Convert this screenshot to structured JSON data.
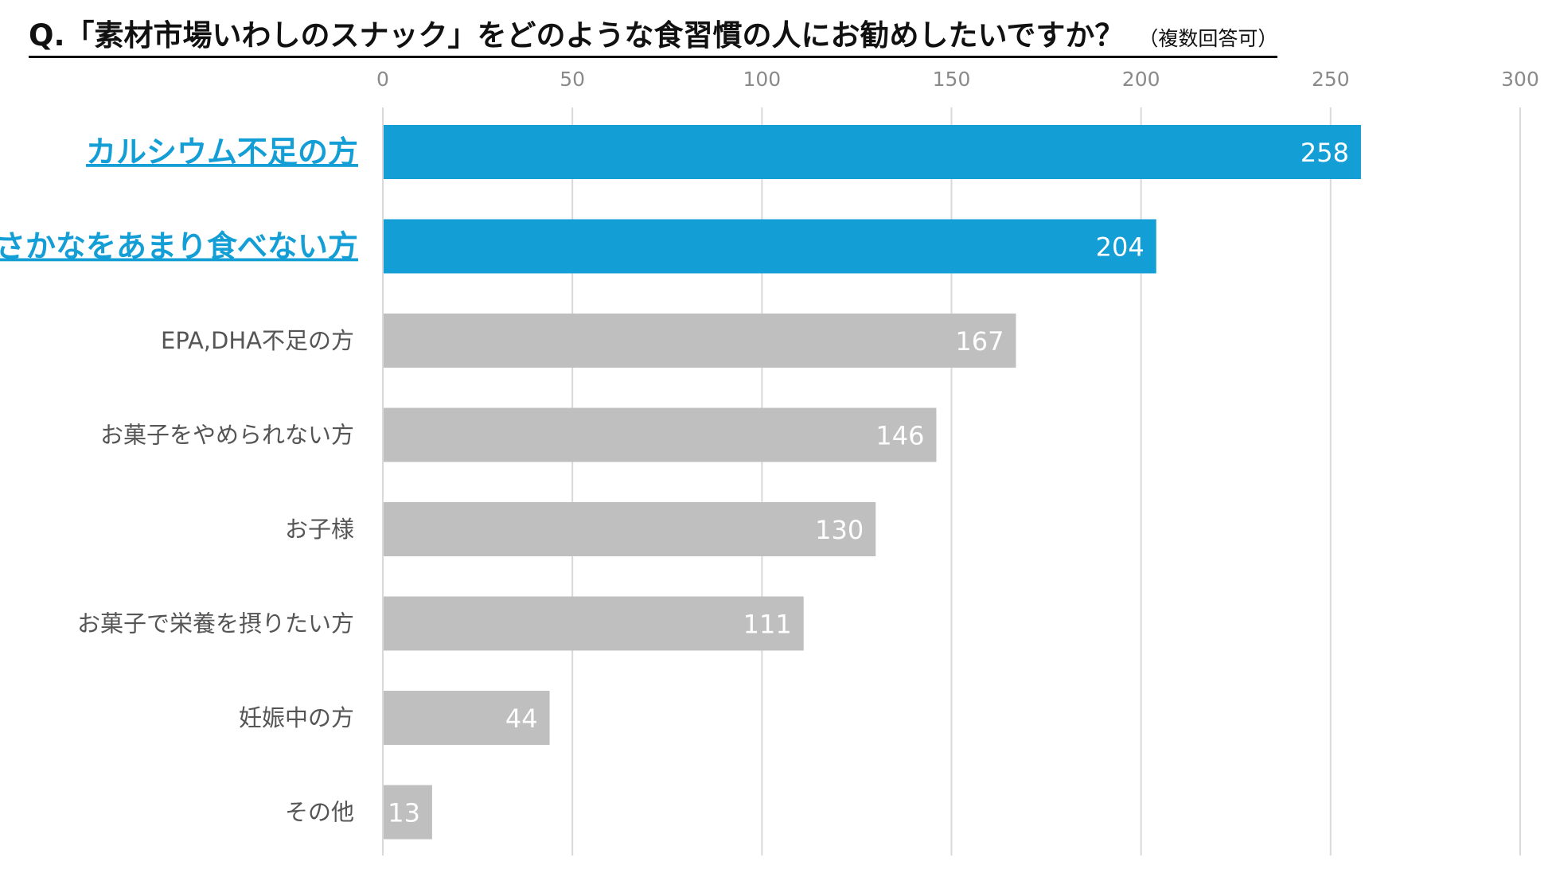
{
  "title": {
    "main": "Q.「素材市場いわしのスナック」をどのような食習慣の人にお勧めしたいですか？",
    "sub": "（複数回答可）"
  },
  "colors": {
    "highlight": "#149ED6",
    "normal": "#BFBFBF",
    "grid": "#D9D9D9",
    "label": "#555555"
  },
  "chart_data": {
    "type": "bar",
    "orientation": "horizontal",
    "categories": [
      "カルシウム不足の方",
      "さかなをあまり食べない方",
      "EPA,DHA不足の方",
      "お菓子をやめられない方",
      "お子様",
      "お菓子で栄養を摂りたい方",
      "妊娠中の方",
      "その他"
    ],
    "values": [
      258,
      204,
      167,
      146,
      130,
      111,
      44,
      13
    ],
    "highlighted": [
      true,
      true,
      false,
      false,
      false,
      false,
      false,
      false
    ],
    "xlim": [
      0,
      300
    ],
    "ticks": [
      0,
      50,
      100,
      150,
      200,
      250,
      300
    ],
    "tick_labels": [
      "0",
      "50",
      "100",
      "150",
      "200",
      "250",
      "300"
    ],
    "value_labels": [
      "258",
      "204",
      "167",
      "146",
      "130",
      "111",
      "44",
      "13"
    ],
    "grid": true,
    "axis_position": "top"
  }
}
